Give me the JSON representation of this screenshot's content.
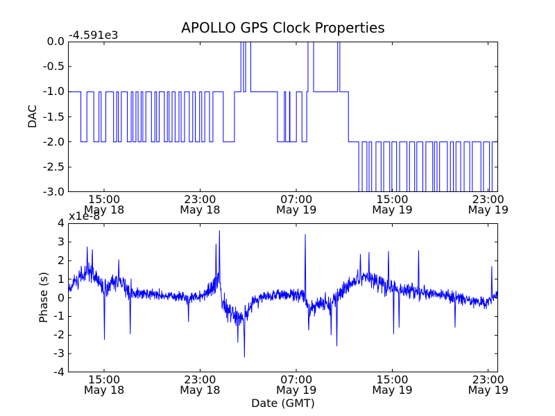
{
  "figure": {
    "background": "#ffffff",
    "axis_color": "#000000",
    "line_color": "#0000ff"
  },
  "chart_data": [
    {
      "type": "line",
      "subtype": "step",
      "title": "APOLLO GPS Clock Properties",
      "ylabel": "DAC",
      "offset_label": "-4.591e3",
      "ylim": [
        -3.0,
        0.0
      ],
      "yticks": [
        "0.0",
        "-0.5",
        "-1.0",
        "-1.5",
        "-2.0",
        "-2.5",
        "-3.0"
      ],
      "xticks": [
        {
          "time": "15:00",
          "date": "May 18"
        },
        {
          "time": "23:00",
          "date": "May 18"
        },
        {
          "time": "07:00",
          "date": "May 19"
        },
        {
          "time": "15:00",
          "date": "May 19"
        },
        {
          "time": "23:00",
          "date": "May 19"
        }
      ],
      "xtick_positions": [
        0.084,
        0.307,
        0.531,
        0.754,
        0.977
      ],
      "grid": false,
      "legend": null,
      "steps": [
        [
          0.0,
          -1
        ],
        [
          0.03,
          -2
        ],
        [
          0.044,
          -1
        ],
        [
          0.06,
          -2
        ],
        [
          0.072,
          -1
        ],
        [
          0.077,
          -2
        ],
        [
          0.088,
          -1
        ],
        [
          0.106,
          -2
        ],
        [
          0.113,
          -1
        ],
        [
          0.117,
          -2
        ],
        [
          0.124,
          -1
        ],
        [
          0.138,
          -2
        ],
        [
          0.147,
          -1
        ],
        [
          0.151,
          -2
        ],
        [
          0.158,
          -1
        ],
        [
          0.163,
          -2
        ],
        [
          0.17,
          -1
        ],
        [
          0.174,
          -2
        ],
        [
          0.181,
          -1
        ],
        [
          0.194,
          -2
        ],
        [
          0.202,
          -1
        ],
        [
          0.206,
          -2
        ],
        [
          0.212,
          -1
        ],
        [
          0.224,
          -2
        ],
        [
          0.231,
          -1
        ],
        [
          0.235,
          -2
        ],
        [
          0.242,
          -1
        ],
        [
          0.249,
          -2
        ],
        [
          0.258,
          -1
        ],
        [
          0.263,
          -2
        ],
        [
          0.271,
          -1
        ],
        [
          0.282,
          -2
        ],
        [
          0.29,
          -1
        ],
        [
          0.296,
          -2
        ],
        [
          0.306,
          -1
        ],
        [
          0.311,
          -2
        ],
        [
          0.318,
          -1
        ],
        [
          0.329,
          -2
        ],
        [
          0.337,
          -1
        ],
        [
          0.361,
          -2
        ],
        [
          0.387,
          -1
        ],
        [
          0.402,
          0
        ],
        [
          0.408,
          -1
        ],
        [
          0.413,
          0
        ],
        [
          0.425,
          -1
        ],
        [
          0.487,
          -2
        ],
        [
          0.503,
          -1
        ],
        [
          0.506,
          -2
        ],
        [
          0.515,
          -1
        ],
        [
          0.516,
          -2
        ],
        [
          0.531,
          -1
        ],
        [
          0.544,
          -2
        ],
        [
          0.555,
          -1
        ],
        [
          0.558,
          0
        ],
        [
          0.571,
          -1
        ],
        [
          0.627,
          0
        ],
        [
          0.632,
          -1
        ],
        [
          0.652,
          -2
        ],
        [
          0.676,
          -3
        ],
        [
          0.684,
          -2
        ],
        [
          0.695,
          -3
        ],
        [
          0.7,
          -2
        ],
        [
          0.706,
          -3
        ],
        [
          0.716,
          -2
        ],
        [
          0.728,
          -3
        ],
        [
          0.734,
          -2
        ],
        [
          0.748,
          -3
        ],
        [
          0.753,
          -2
        ],
        [
          0.764,
          -3
        ],
        [
          0.771,
          -2
        ],
        [
          0.788,
          -3
        ],
        [
          0.794,
          -2
        ],
        [
          0.806,
          -3
        ],
        [
          0.811,
          -2
        ],
        [
          0.825,
          -3
        ],
        [
          0.832,
          -2
        ],
        [
          0.848,
          -3
        ],
        [
          0.852,
          -2
        ],
        [
          0.858,
          -3
        ],
        [
          0.864,
          -2
        ],
        [
          0.882,
          -3
        ],
        [
          0.889,
          -2
        ],
        [
          0.896,
          -3
        ],
        [
          0.902,
          -2
        ],
        [
          0.913,
          -3
        ],
        [
          0.921,
          -2
        ],
        [
          0.934,
          -3
        ],
        [
          0.94,
          -2
        ],
        [
          0.96,
          -3
        ],
        [
          0.966,
          -2
        ],
        [
          0.98,
          -3
        ],
        [
          0.986,
          -2
        ],
        [
          1.0,
          -2
        ]
      ]
    },
    {
      "type": "line",
      "ylabel": "Phase (s)",
      "scale_label": "x1e-8",
      "xlabel": "Date (GMT)",
      "ylim": [
        -4,
        4
      ],
      "yticks": [
        "4",
        "3",
        "2",
        "1",
        "0",
        "-1",
        "-2",
        "-3",
        "-4"
      ],
      "xticks": [
        {
          "time": "15:00",
          "date": "May 18"
        },
        {
          "time": "23:00",
          "date": "May 18"
        },
        {
          "time": "07:00",
          "date": "May 19"
        },
        {
          "time": "15:00",
          "date": "May 19"
        },
        {
          "time": "23:00",
          "date": "May 19"
        }
      ],
      "xtick_positions": [
        0.084,
        0.307,
        0.531,
        0.754,
        0.977
      ],
      "grid": false,
      "legend": null,
      "envelope": {
        "x": [
          0.0,
          0.02,
          0.045,
          0.06,
          0.075,
          0.085,
          0.1,
          0.12,
          0.14,
          0.16,
          0.2,
          0.24,
          0.28,
          0.31,
          0.335,
          0.35,
          0.36,
          0.385,
          0.41,
          0.43,
          0.46,
          0.5,
          0.53,
          0.548,
          0.56,
          0.58,
          0.61,
          0.63,
          0.66,
          0.69,
          0.72,
          0.75,
          0.78,
          0.81,
          0.84,
          0.87,
          0.9,
          0.93,
          0.96,
          0.985,
          1.0
        ],
        "mean": [
          0.35,
          0.9,
          1.4,
          1.2,
          0.8,
          0.3,
          0.8,
          0.9,
          0.4,
          0.3,
          0.15,
          0.1,
          0.0,
          0.1,
          0.55,
          1.1,
          -0.3,
          -0.9,
          -1.0,
          -0.3,
          0.1,
          0.15,
          0.1,
          0.2,
          -0.75,
          -0.3,
          -0.4,
          0.2,
          0.8,
          1.1,
          0.8,
          0.55,
          0.4,
          0.3,
          0.25,
          0.2,
          0.0,
          -0.1,
          -0.3,
          -0.2,
          0.3
        ],
        "spread": [
          0.5,
          0.7,
          0.8,
          0.8,
          0.7,
          1.0,
          0.7,
          0.7,
          0.8,
          0.55,
          0.45,
          0.4,
          0.5,
          0.5,
          0.8,
          1.0,
          0.9,
          0.8,
          0.9,
          0.6,
          0.45,
          0.5,
          0.5,
          0.9,
          0.7,
          0.6,
          0.8,
          0.7,
          0.6,
          0.7,
          0.7,
          0.8,
          0.6,
          0.7,
          0.55,
          0.5,
          0.6,
          0.5,
          0.45,
          0.5,
          0.4
        ]
      },
      "spikes": [
        [
          0.045,
          2.75
        ],
        [
          0.057,
          2.6
        ],
        [
          0.085,
          -2.25
        ],
        [
          0.118,
          2.05
        ],
        [
          0.145,
          -1.95
        ],
        [
          0.28,
          -1.3
        ],
        [
          0.344,
          2.9
        ],
        [
          0.352,
          3.62
        ],
        [
          0.395,
          -2.4
        ],
        [
          0.41,
          -3.2
        ],
        [
          0.552,
          3.42
        ],
        [
          0.56,
          -1.75
        ],
        [
          0.612,
          -2.0
        ],
        [
          0.625,
          -2.6
        ],
        [
          0.68,
          2.35
        ],
        [
          0.7,
          2.45
        ],
        [
          0.745,
          2.5
        ],
        [
          0.757,
          -1.95
        ],
        [
          0.77,
          -1.6
        ],
        [
          0.815,
          2.55
        ],
        [
          0.9,
          -1.6
        ],
        [
          0.985,
          1.7
        ]
      ]
    }
  ]
}
